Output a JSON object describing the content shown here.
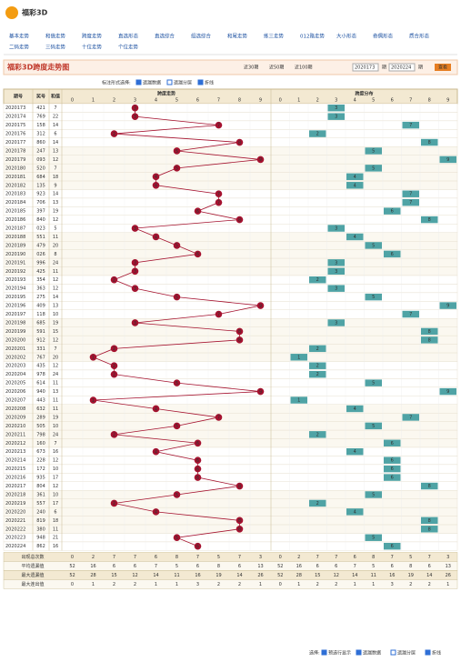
{
  "header": {
    "logo": "福彩3D",
    "nav": [
      "基本走势",
      "和值走势",
      "跨度走势",
      "直选形态",
      "直选综合",
      "组选综合",
      "和尾走势",
      "练三走势",
      "012路走势",
      "大小形态",
      "奇偶形态",
      "质合形态",
      "二码走势",
      "三码走势",
      "十位走势",
      "个位走势"
    ]
  },
  "toolbar": {
    "title": "福彩3D跨度走势图",
    "ranges": [
      "近30期",
      "近50期",
      "近100期"
    ],
    "from": "2020173",
    "to": "2020224",
    "to_label": "期",
    "button": "查看"
  },
  "options": {
    "label": "标注形式选择:",
    "items": [
      "遗漏数据",
      "遗漏分层",
      "折线"
    ]
  },
  "table": {
    "columns": [
      "期号",
      "奖号",
      "和值",
      "跨度走势",
      "跨度分布"
    ],
    "digits": [
      0,
      1,
      2,
      3,
      4,
      5,
      6,
      7,
      8,
      9
    ],
    "rows": [
      [
        "2020173",
        "421",
        7,
        3
      ],
      [
        "2020174",
        "769",
        22,
        3
      ],
      [
        "2020175",
        "158",
        14,
        7
      ],
      [
        "2020176",
        "312",
        6,
        2
      ],
      [
        "2020177",
        "860",
        14,
        8
      ],
      [
        "2020178",
        "247",
        13,
        5
      ],
      [
        "2020179",
        "093",
        12,
        9
      ],
      [
        "2020180",
        "520",
        7,
        5
      ],
      [
        "2020181",
        "684",
        18,
        4
      ],
      [
        "2020182",
        "135",
        9,
        4
      ],
      [
        "2020183",
        "923",
        14,
        7
      ],
      [
        "2020184",
        "706",
        13,
        7
      ],
      [
        "2020185",
        "397",
        19,
        6
      ],
      [
        "2020186",
        "840",
        12,
        8
      ],
      [
        "2020187",
        "023",
        5,
        3
      ],
      [
        "2020188",
        "551",
        11,
        4
      ],
      [
        "2020189",
        "479",
        20,
        5
      ],
      [
        "2020190",
        "026",
        8,
        6
      ],
      [
        "2020191",
        "996",
        24,
        3
      ],
      [
        "2020192",
        "425",
        11,
        3
      ],
      [
        "2020193",
        "354",
        12,
        2
      ],
      [
        "2020194",
        "363",
        12,
        3
      ],
      [
        "2020195",
        "275",
        14,
        5
      ],
      [
        "2020196",
        "409",
        13,
        9
      ],
      [
        "2020197",
        "118",
        10,
        7
      ],
      [
        "2020198",
        "685",
        19,
        3
      ],
      [
        "2020199",
        "591",
        15,
        8
      ],
      [
        "2020200",
        "912",
        12,
        8
      ],
      [
        "2020201",
        "331",
        7,
        2
      ],
      [
        "2020202",
        "767",
        20,
        1
      ],
      [
        "2020203",
        "435",
        12,
        2
      ],
      [
        "2020204",
        "978",
        24,
        2
      ],
      [
        "2020205",
        "614",
        11,
        5
      ],
      [
        "2020206",
        "940",
        13,
        9
      ],
      [
        "2020207",
        "443",
        11,
        1
      ],
      [
        "2020208",
        "632",
        11,
        4
      ],
      [
        "2020209",
        "289",
        19,
        7
      ],
      [
        "2020210",
        "505",
        10,
        5
      ],
      [
        "2020211",
        "798",
        24,
        2
      ],
      [
        "2020212",
        "160",
        7,
        6
      ],
      [
        "2020213",
        "673",
        16,
        4
      ],
      [
        "2020214",
        "228",
        12,
        6
      ],
      [
        "2020215",
        "172",
        10,
        6
      ],
      [
        "2020216",
        "935",
        17,
        6
      ],
      [
        "2020217",
        "804",
        12,
        8
      ],
      [
        "2020218",
        "361",
        10,
        5
      ],
      [
        "2020219",
        "557",
        17,
        2
      ],
      [
        "2020220",
        "240",
        6,
        4
      ],
      [
        "2020221",
        "819",
        18,
        8
      ],
      [
        "2020222",
        "380",
        11,
        8
      ],
      [
        "2020223",
        "948",
        21,
        5
      ],
      [
        "2020224",
        "862",
        16,
        6
      ]
    ],
    "stats": [
      {
        "label": "出现总次数",
        "values": [
          0,
          2,
          7,
          7,
          6,
          8,
          7,
          5,
          7,
          3
        ]
      },
      {
        "label": "平均遗漏值",
        "values": [
          52,
          16,
          6,
          6,
          7,
          5,
          6,
          8,
          6,
          13
        ]
      },
      {
        "label": "最大遗漏值",
        "values": [
          52,
          28,
          15,
          12,
          14,
          11,
          16,
          19,
          14,
          26
        ]
      },
      {
        "label": "最大连出值",
        "values": [
          0,
          1,
          2,
          2,
          1,
          1,
          3,
          2,
          2,
          1
        ]
      }
    ]
  },
  "footer": {
    "label": "选择:",
    "items": [
      "预选行显示",
      "遗漏数据",
      "遗漏分层",
      "折线"
    ]
  }
}
